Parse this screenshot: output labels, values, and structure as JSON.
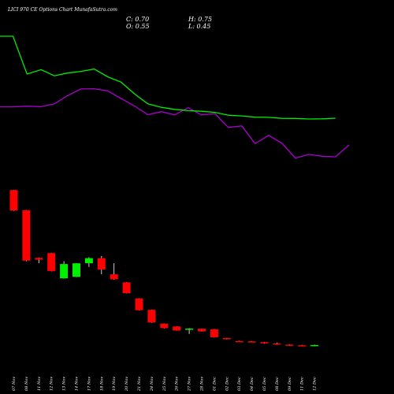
{
  "title": "LICI 970  CE Options  Chart MunafaSutra.com",
  "ohlc": {
    "close": "C: 0.70",
    "high": "H: 0.75",
    "open": "O: 0.55",
    "low": "L: 0.45"
  },
  "chart_data": {
    "type": "candlestick",
    "categories": [
      "07 Nov",
      "08 Nov",
      "11 Nov",
      "12 Nov",
      "13 Nov",
      "14 Nov",
      "18 Nov",
      "19 Nov",
      "20 Nov",
      "21 Nov",
      "22 Nov",
      "25 Nov",
      "26 Nov",
      "27 Nov",
      "28 Nov",
      "29 Nov",
      "02 Dec",
      "03 Dec",
      "04 Dec",
      "05 Dec",
      "06 Dec",
      "09 Dec",
      "10 Dec",
      "11 Dec",
      "12 Dec"
    ],
    "tick_labels": [
      "07 Nov",
      "08 Nov",
      "11 Nov",
      "12 Nov",
      "13 Nov",
      "14 Nov",
      "17 Nov",
      "18 Nov",
      "19 Nov",
      "20 Nov",
      "21 Nov",
      "24 Nov",
      "25 Nov",
      "26 Nov",
      "27 Nov",
      "28 Nov",
      "01 Dec",
      "02 Dec",
      "03 Dec",
      "04 Dec",
      "05 Dec",
      "08 Dec",
      "09 Dec",
      "11 Dec",
      "12 Dec"
    ],
    "candles": [
      {
        "open": 68.0,
        "high": 68.2,
        "low": 51.5,
        "close": 51.8
      },
      {
        "open": 52.0,
        "high": 52.2,
        "low": 11.6,
        "close": 12.0
      },
      {
        "open": 14.2,
        "high": 14.5,
        "low": 10.0,
        "close": 12.8
      },
      {
        "open": 18.0,
        "high": 18.3,
        "low": 3.5,
        "close": 3.8
      },
      {
        "open": -2.0,
        "high": 11.6,
        "low": -2.3,
        "close": 9.3
      },
      {
        "open": -0.8,
        "high": 10.0,
        "low": -1.1,
        "close": 9.9
      },
      {
        "open": 10.0,
        "high": 14.8,
        "low": 7.0,
        "close": 14.0
      },
      {
        "open": 14.0,
        "high": 15.7,
        "low": 1.2,
        "close": 5.0
      },
      {
        "open": 1.2,
        "high": 10.0,
        "low": -3.1,
        "close": -2.8
      },
      {
        "open": -5.2,
        "high": -5.0,
        "low": -14.0,
        "close": -13.8
      },
      {
        "open": -18.0,
        "high": -17.8,
        "low": -27.5,
        "close": -27.3
      },
      {
        "open": -27.0,
        "high": -26.8,
        "low": -37.3,
        "close": -37.0
      },
      {
        "open": -38.0,
        "high": -37.8,
        "low": -41.8,
        "close": -41.5
      },
      {
        "open": -40.2,
        "high": -40.0,
        "low": -43.6,
        "close": -43.4
      },
      {
        "open": -42.5,
        "high": -41.5,
        "low": -46.1,
        "close": -41.9
      },
      {
        "open": -42.0,
        "high": -41.8,
        "low": -44.4,
        "close": -44.1
      },
      {
        "open": -42.4,
        "high": -42.1,
        "low": -49.1,
        "close": -48.8
      },
      {
        "open": -49.4,
        "high": -49.2,
        "low": -50.5,
        "close": -50.2
      },
      {
        "open": -51.8,
        "high": -51.5,
        "low": -52.3,
        "close": -52.1
      },
      {
        "open": -52.0,
        "high": -51.8,
        "low": -52.6,
        "close": -52.4
      },
      {
        "open": -52.6,
        "high": -52.4,
        "low": -53.9,
        "close": -53.6
      },
      {
        "open": -53.6,
        "high": -53.0,
        "low": -54.7,
        "close": -54.0
      },
      {
        "open": -54.6,
        "high": -54.3,
        "low": -55.4,
        "close": -55.1
      },
      {
        "open": -55.1,
        "high": -54.8,
        "low": -55.8,
        "close": -55.5
      },
      {
        "open": -55.3,
        "high": -54.6,
        "low": -55.9,
        "close": -54.9
      }
    ],
    "ma_green": [
      190.0,
      190.0,
      160.0,
      163.5,
      158.6,
      160.8,
      162.1,
      164.0,
      157.8,
      153.6,
      144.2,
      136.4,
      133.6,
      132.0,
      131.0,
      130.5,
      129.6,
      127.4,
      126.8,
      125.8,
      125.7,
      124.9,
      124.8,
      124.4,
      124.5,
      125.0
    ],
    "ma_purple": [
      134.0,
      134.0,
      134.5,
      134.1,
      136.4,
      142.8,
      148.2,
      148.4,
      146.6,
      140.6,
      134.7,
      127.8,
      130.2,
      127.6,
      133.3,
      127.6,
      128.7,
      117.6,
      118.9,
      104.8,
      111.4,
      105.1,
      93.4,
      96.3,
      94.8,
      94.4,
      103.8
    ],
    "ma_green_x": [
      0,
      1.04,
      2.16,
      3.28,
      4.34,
      5.38,
      6.46,
      7.52,
      8.6,
      9.66,
      10.74,
      11.8,
      12.88,
      13.94,
      15.02,
      16.08,
      17.16,
      18.22,
      19.3,
      20.36,
      21.44,
      22.5,
      23.58,
      24.64,
      25.72,
      26.78
    ],
    "ma_purple_x": [
      0,
      1.04,
      2.16,
      3.28,
      4.34,
      5.38,
      6.46,
      7.52,
      8.6,
      9.66,
      10.74,
      11.8,
      12.88,
      13.94,
      15.02,
      16.08,
      17.16,
      18.22,
      19.3,
      20.36,
      21.44,
      22.5,
      23.58,
      24.64,
      25.72,
      26.78,
      27.86
    ],
    "colors": {
      "up": "#00ee00",
      "down": "#ff0000",
      "ma_green": "#00ee00",
      "ma_purple": "#aa00cc",
      "background": "#000000",
      "text": "#ffffff"
    }
  }
}
